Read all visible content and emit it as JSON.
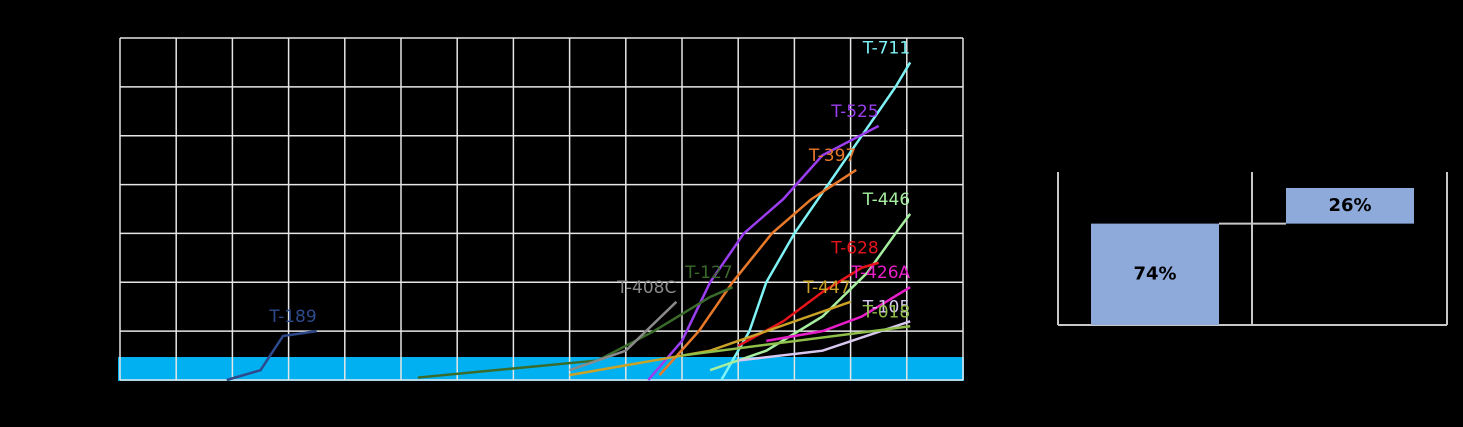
{
  "chart_data": [
    {
      "type": "line",
      "xlim": [
        0,
        15
      ],
      "ylim": [
        0,
        7
      ],
      "xticks": [
        0,
        1,
        2,
        3,
        4,
        5,
        6,
        7,
        8,
        9,
        10,
        11,
        12,
        13,
        14,
        15
      ],
      "yticks": [
        0,
        1,
        2,
        3,
        4,
        5,
        6,
        7
      ],
      "grid": true,
      "series": [
        {
          "name": "T-711",
          "color": "#7ff3f5",
          "x": [
            10.7,
            11.2,
            11.5,
            12,
            12.6,
            13.2,
            13.8,
            14.06
          ],
          "values": [
            0,
            1,
            2,
            3,
            4,
            5,
            6,
            6.5
          ]
        },
        {
          "name": "T-525",
          "color": "#9b3df0",
          "x": [
            9.4,
            10,
            10.5,
            11.1,
            11.8,
            12.5,
            13.5
          ],
          "values": [
            0,
            0.8,
            2,
            3,
            3.7,
            4.6,
            5.2
          ]
        },
        {
          "name": "T-397",
          "color": "#e8792a",
          "x": [
            9.6,
            10.3,
            10.9,
            11.6,
            12.3,
            13.1
          ],
          "values": [
            0.1,
            1,
            2,
            3,
            3.7,
            4.3
          ]
        },
        {
          "name": "T-446",
          "color": "#a7efa0",
          "x": [
            10.5,
            11.5,
            12.5,
            13.3,
            13.8,
            14.06
          ],
          "values": [
            0.2,
            0.6,
            1.3,
            2.2,
            3,
            3.4
          ]
        },
        {
          "name": "T-628",
          "color": "#e8141c",
          "x": [
            11,
            11.8,
            12.5,
            13.2,
            13.5
          ],
          "values": [
            0.7,
            1.2,
            1.8,
            2.3,
            2.4
          ]
        },
        {
          "name": "T-426A",
          "color": "#e81fc8",
          "x": [
            11.5,
            12.5,
            13.2,
            14.06
          ],
          "values": [
            0.8,
            1.0,
            1.3,
            1.9
          ]
        },
        {
          "name": "T-105",
          "color": "#d8c8f0",
          "x": [
            11,
            12.5,
            14.06
          ],
          "values": [
            0.4,
            0.6,
            1.2
          ]
        },
        {
          "name": "T-127",
          "color": "#3a6b2a",
          "x": [
            5.3,
            8.5,
            9.5,
            10.5,
            10.9
          ],
          "values": [
            0.05,
            0.4,
            1,
            1.7,
            1.9
          ]
        },
        {
          "name": "T-447",
          "color": "#c9a227",
          "x": [
            8,
            10.5,
            12,
            13
          ],
          "values": [
            0.1,
            0.6,
            1.2,
            1.6
          ]
        },
        {
          "name": "T-408C",
          "color": "#8a8a8a",
          "x": [
            8,
            9,
            9.9
          ],
          "values": [
            0.2,
            0.6,
            1.6
          ]
        },
        {
          "name": "T-189",
          "color": "#2e4a8c",
          "x": [
            1.9,
            2.5,
            2.9,
            3.5
          ],
          "values": [
            0,
            0.2,
            0.9,
            1.0
          ]
        },
        {
          "name": "T-018",
          "color": "#8fbf4a",
          "x": [
            10,
            14.06
          ],
          "values": [
            0.5,
            1.1
          ]
        }
      ]
    },
    {
      "type": "waterfall",
      "categories": [
        null,
        null
      ],
      "values": [
        74,
        26
      ],
      "value_labels": [
        "74%",
        "26%"
      ],
      "color": "#8eaadb",
      "ylim": [
        0,
        100
      ]
    }
  ]
}
